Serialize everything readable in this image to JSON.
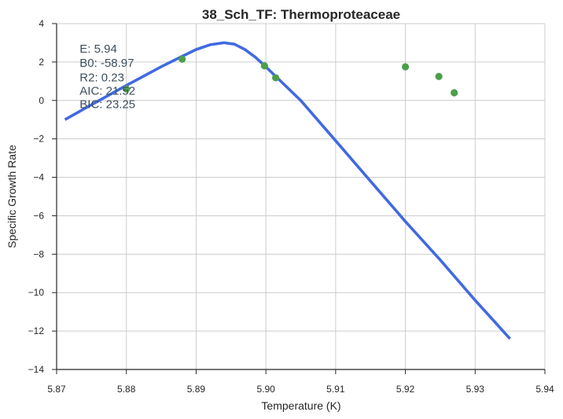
{
  "chart_data": {
    "type": "scatter",
    "title": "38_Sch_TF: Thermoproteaceae",
    "xlabel": "Temperature (K)",
    "ylabel": "Specific Growth Rate",
    "xlim": [
      5.87,
      5.94
    ],
    "ylim": [
      -14,
      4
    ],
    "xticks": [
      5.87,
      5.88,
      5.89,
      5.9,
      5.91,
      5.92,
      5.93,
      5.94
    ],
    "xtick_labels": [
      "5.87",
      "5.88",
      "5.89",
      "5.90",
      "5.91",
      "5.92",
      "5.93",
      "5.94"
    ],
    "yticks": [
      -14,
      -12,
      -10,
      -8,
      -6,
      -4,
      -2,
      0,
      2,
      4
    ],
    "ytick_labels": [
      "−14",
      "−12",
      "−10",
      "−8",
      "−6",
      "−4",
      "−2",
      "0",
      "2",
      "4"
    ],
    "grid": true,
    "points": [
      {
        "x": 5.88,
        "y": 0.6
      },
      {
        "x": 5.888,
        "y": 2.15
      },
      {
        "x": 5.8998,
        "y": 1.8
      },
      {
        "x": 5.9014,
        "y": 1.18
      },
      {
        "x": 5.92,
        "y": 1.75
      },
      {
        "x": 5.9248,
        "y": 1.25
      },
      {
        "x": 5.927,
        "y": 0.4
      }
    ],
    "fit_line": [
      {
        "x": 5.8712,
        "y": -1.0
      },
      {
        "x": 5.875,
        "y": -0.22
      },
      {
        "x": 5.88,
        "y": 0.78
      },
      {
        "x": 5.885,
        "y": 1.76
      },
      {
        "x": 5.888,
        "y": 2.3
      },
      {
        "x": 5.89,
        "y": 2.65
      },
      {
        "x": 5.892,
        "y": 2.9
      },
      {
        "x": 5.894,
        "y": 3.0
      },
      {
        "x": 5.8955,
        "y": 2.93
      },
      {
        "x": 5.897,
        "y": 2.65
      },
      {
        "x": 5.8985,
        "y": 2.25
      },
      {
        "x": 5.9,
        "y": 1.75
      },
      {
        "x": 5.905,
        "y": 0.0
      },
      {
        "x": 5.91,
        "y": -2.1
      },
      {
        "x": 5.915,
        "y": -4.2
      },
      {
        "x": 5.92,
        "y": -6.3
      },
      {
        "x": 5.925,
        "y": -8.3
      },
      {
        "x": 5.93,
        "y": -10.4
      },
      {
        "x": 5.935,
        "y": -12.4
      }
    ],
    "annotations": [
      {
        "text": "E:  5.94",
        "x": 5.8733,
        "y": 2.7
      },
      {
        "text": "B0:  -58.97",
        "x": 5.8733,
        "y": 1.95
      },
      {
        "text": "R2:  0.23",
        "x": 5.8733,
        "y": 1.2
      },
      {
        "text": "AIC: 21.52",
        "x": 5.8733,
        "y": 0.5
      },
      {
        "text": "BIC: 23.25",
        "x": 5.8733,
        "y": -0.2
      }
    ],
    "colors": {
      "line": "#4169e1",
      "points": "#4c9f4c",
      "grid": "#cccccc",
      "axis": "#262626"
    }
  }
}
